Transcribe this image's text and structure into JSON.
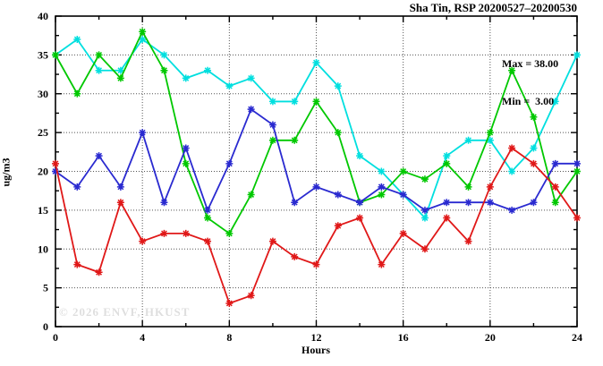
{
  "title": "Sha Tin, RSP 20200527–20200530",
  "watermark": "© 2026 ENVF, HKUST",
  "legend": {
    "max_label": "Max = 38.00",
    "min_label": "Min =  3.00"
  },
  "chart_data": {
    "type": "line",
    "title": "Sha Tin, RSP 20200527–20200530",
    "xlabel": "Hours",
    "ylabel": "ug/m3",
    "xlim": [
      0,
      24
    ],
    "ylim": [
      0,
      40
    ],
    "x_major_ticks": [
      0,
      4,
      8,
      12,
      16,
      20,
      24
    ],
    "x_minor_ticks": [
      2,
      6,
      10,
      14,
      18,
      22
    ],
    "y_major_ticks": [
      0,
      5,
      10,
      15,
      20,
      25,
      30,
      35,
      40
    ],
    "y_minor_ticks": [
      2.5,
      7.5,
      12.5,
      17.5,
      22.5,
      27.5,
      32.5,
      37.5
    ],
    "grid": "dotted",
    "grid_color": "#555555",
    "annotations": [
      "Max = 38.00",
      "Min =  3.00"
    ],
    "x": [
      0,
      1,
      2,
      3,
      4,
      5,
      6,
      7,
      8,
      9,
      10,
      11,
      12,
      13,
      14,
      15,
      16,
      17,
      18,
      19,
      20,
      21,
      22,
      23,
      24
    ],
    "series": [
      {
        "name": "cyan-line",
        "color": "#00dfdf",
        "values": [
          35,
          37,
          33,
          33,
          37,
          35,
          32,
          33,
          31,
          32,
          29,
          29,
          34,
          31,
          22,
          20,
          17,
          14,
          22,
          24,
          24,
          20,
          23,
          29,
          35
        ]
      },
      {
        "name": "green-line",
        "color": "#00c800",
        "values": [
          35,
          30,
          35,
          32,
          38,
          33,
          21,
          14,
          12,
          17,
          24,
          24,
          29,
          25,
          16,
          17,
          20,
          19,
          21,
          18,
          25,
          33,
          27,
          16,
          20
        ]
      },
      {
        "name": "blue-line",
        "color": "#2a2ad0",
        "values": [
          20,
          18,
          22,
          18,
          25,
          16,
          23,
          15,
          21,
          28,
          26,
          16,
          18,
          17,
          16,
          18,
          17,
          15,
          16,
          16,
          16,
          15,
          16,
          21,
          21
        ]
      },
      {
        "name": "red-line",
        "color": "#e01818",
        "values": [
          21,
          8,
          7,
          16,
          11,
          12,
          12,
          11,
          3,
          4,
          11,
          9,
          8,
          13,
          14,
          8,
          12,
          10,
          14,
          11,
          18,
          23,
          21,
          18,
          14
        ]
      }
    ],
    "stats": {
      "max": 38.0,
      "min": 3.0
    }
  }
}
